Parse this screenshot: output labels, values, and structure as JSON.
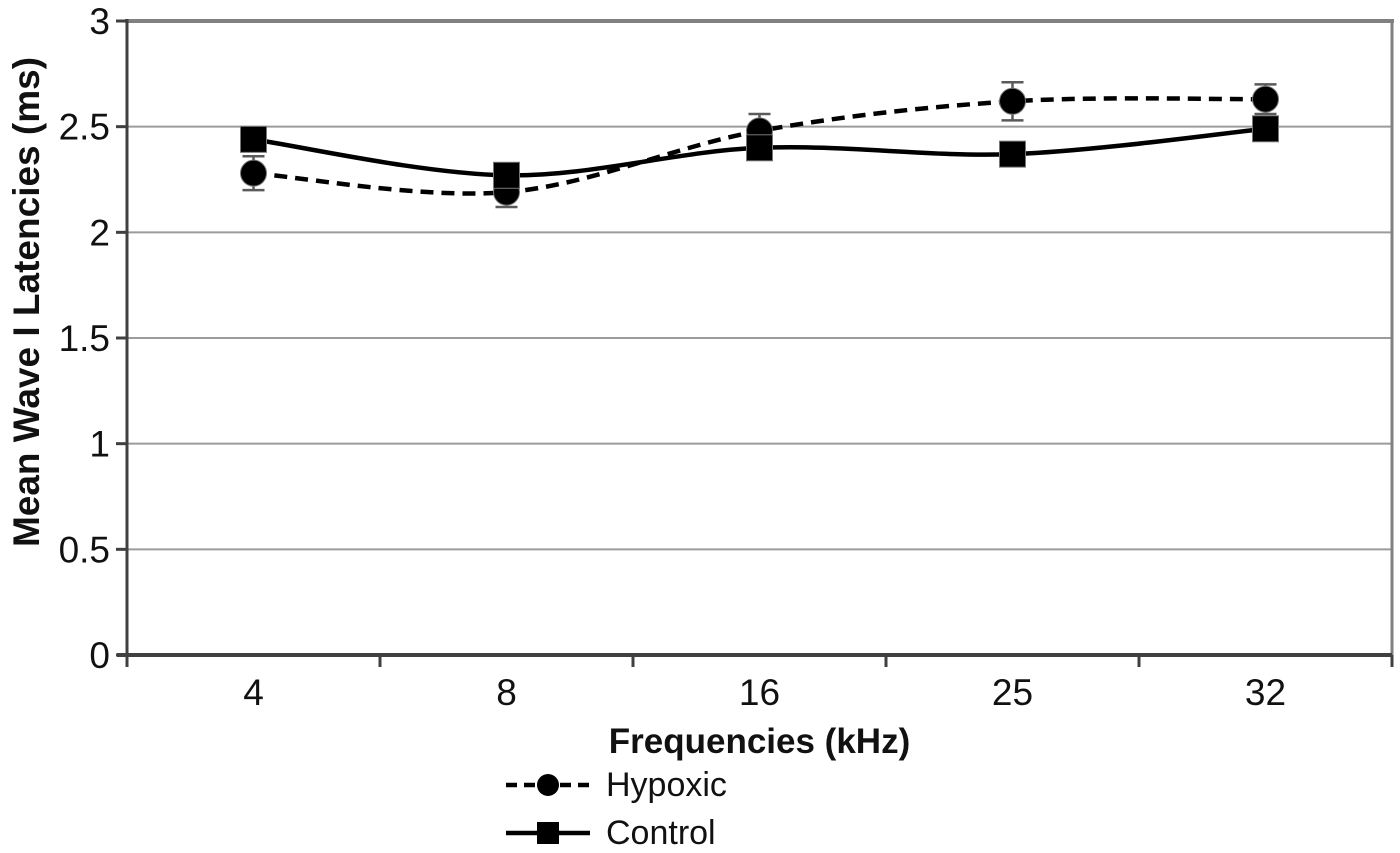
{
  "chart_data": {
    "type": "line",
    "title": "",
    "xlabel": "Frequencies (kHz)",
    "ylabel": "Mean Wave I Latencies (ms)",
    "categories": [
      "4",
      "8",
      "16",
      "25",
      "32"
    ],
    "series": [
      {
        "name": "Hypoxic",
        "marker": "circle",
        "line_style": "dashed",
        "color": "#000000",
        "values": [
          2.28,
          2.19,
          2.48,
          2.62,
          2.63
        ],
        "error_bars": [
          0.08,
          0.07,
          0.08,
          0.09,
          0.07
        ]
      },
      {
        "name": "Control",
        "marker": "square",
        "line_style": "solid",
        "color": "#000000",
        "values": [
          2.44,
          2.27,
          2.4,
          2.37,
          2.49
        ],
        "error_bars": null
      }
    ],
    "ylim": [
      0,
      3
    ],
    "ytick_values": [
      0,
      0.5,
      1,
      1.5,
      2,
      2.5,
      3
    ],
    "ytick_labels": [
      "0",
      "0.5",
      "1",
      "1.5",
      "2",
      "2.5",
      "3"
    ],
    "grid": "horizontal",
    "legend_position": "bottom",
    "smoothed_lines": true,
    "colors": {
      "gridline": "#9b9b9b",
      "plot_border": "#808080",
      "axis_line": "#404040",
      "error_bar": "#5a5a5a",
      "text": "#111111",
      "background": "#ffffff"
    }
  }
}
